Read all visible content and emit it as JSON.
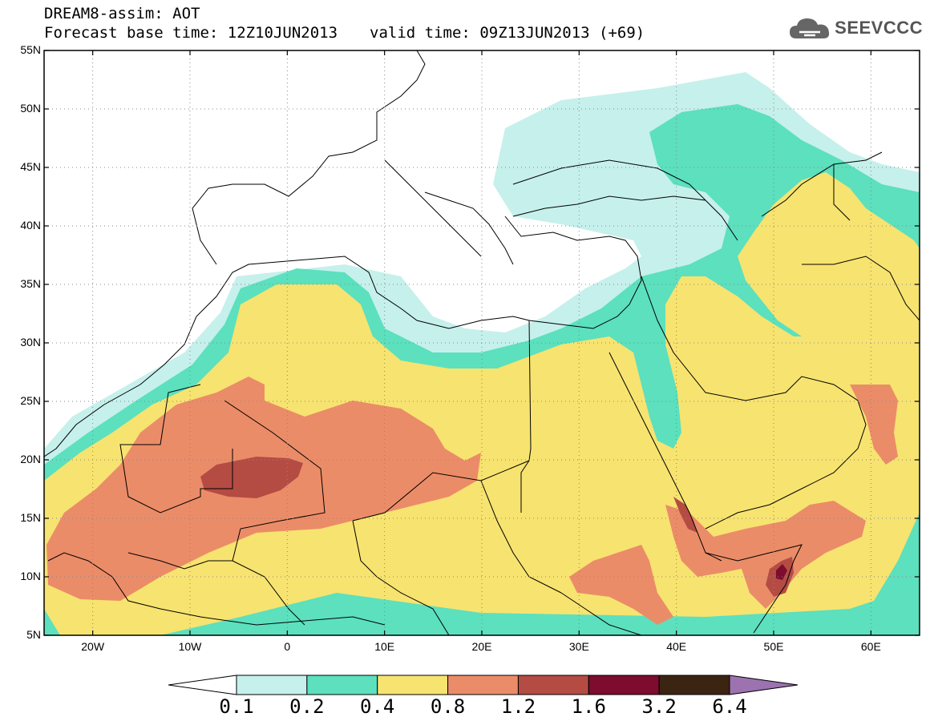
{
  "header": {
    "title_line1": "DREAM8-assim: AOT",
    "title_line2_base": "Forecast base time: 12Z10JUN2013",
    "title_line2_valid": "valid time: 09Z13JUN2013 (+69)"
  },
  "logo": {
    "text": "SEEVCCC",
    "icon": "cloud-logo-icon"
  },
  "map": {
    "lat_labels": [
      "55N",
      "50N",
      "45N",
      "40N",
      "35N",
      "30N",
      "25N",
      "20N",
      "15N",
      "10N",
      "5N"
    ],
    "lon_labels": [
      "20W",
      "10W",
      "0",
      "10E",
      "20E",
      "30E",
      "40E",
      "50E",
      "60E"
    ],
    "extent": {
      "lon_min": -25,
      "lon_max": 65,
      "lat_min": 5,
      "lat_max": 55
    }
  },
  "colorbar": {
    "colors": [
      "#c6f0ec",
      "#5ce0be",
      "#f7e370",
      "#eb8c68",
      "#b44c44",
      "#7d0c2e",
      "#3c2413",
      "#9c72b0"
    ],
    "labels": [
      "0.1",
      "0.2",
      "0.4",
      "0.8",
      "1.2",
      "1.6",
      "3.2",
      "6.4"
    ]
  }
}
